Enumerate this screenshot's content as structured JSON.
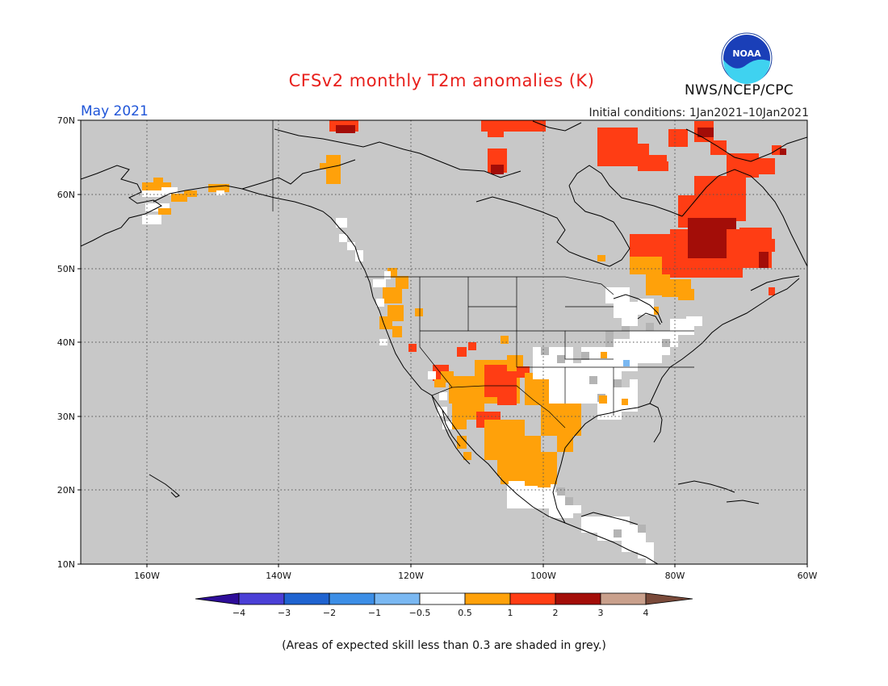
{
  "header": {
    "title": "CFSv2 monthly T2m anomalies (K)",
    "month": "May 2021",
    "initial_conditions": "Initial conditions: 1Jan2021–10Jan2021",
    "agency": "NWS/NCEP/CPC",
    "logo_text": "NOAA"
  },
  "map": {
    "lat_labels": [
      "70N",
      "60N",
      "50N",
      "40N",
      "30N",
      "20N",
      "10N"
    ],
    "lon_labels": [
      "160W",
      "140W",
      "120W",
      "100W",
      "80W",
      "60W"
    ],
    "colors": {
      "background": "#c8c8c8",
      "grid": "#555555",
      "coast": "#000000"
    }
  },
  "legend": {
    "labels": [
      "−4",
      "−3",
      "−2",
      "−1",
      "−0.5",
      "0.5",
      "1",
      "2",
      "3",
      "4"
    ],
    "colors": [
      "#2e0d99",
      "#4a3fd6",
      "#1f63d0",
      "#3c8ee6",
      "#7ab8f2",
      "#ffffff",
      "#ffa10a",
      "#ff3d14",
      "#a30d08",
      "#c9a08c",
      "#7a4a3a"
    ]
  },
  "caption": "(Areas of expected skill less than 0.3 are shaded in grey.)"
}
